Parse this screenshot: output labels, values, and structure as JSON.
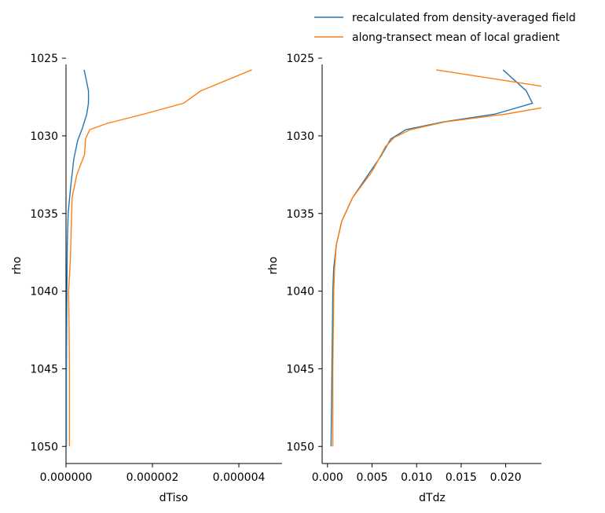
{
  "legend": {
    "entries": [
      {
        "label": "recalculated from density-averaged field",
        "color": "#1f77b4"
      },
      {
        "label": "along-transect mean of local gradient",
        "color": "#ff7f0e"
      }
    ]
  },
  "chart_data": [
    {
      "type": "line",
      "xlabel": "dTiso",
      "ylabel": "rho",
      "xlim": [
        0,
        5e-06
      ],
      "ylim": [
        1025.4,
        1051.1
      ],
      "y_inverted": true,
      "xticks": [
        0,
        2e-06,
        4e-06
      ],
      "xtick_labels": [
        "0.000000",
        "0.000002",
        "0.000004"
      ],
      "yticks": [
        1025,
        1030,
        1035,
        1040,
        1045,
        1050
      ],
      "ytick_labels": [
        "1025",
        "1030",
        "1035",
        "1040",
        "1045",
        "1050"
      ],
      "series": [
        {
          "name": "recalculated from density-averaged field",
          "color": "#1f77b4",
          "points": [
            [
              4.2e-07,
              1025.75
            ],
            [
              5.2e-07,
              1027.1
            ],
            [
              5.2e-07,
              1027.9
            ],
            [
              4.8e-07,
              1028.6
            ],
            [
              3.8e-07,
              1029.5
            ],
            [
              2.7e-07,
              1030.3
            ],
            [
              1.8e-07,
              1031.5
            ],
            [
              1e-07,
              1033.5
            ],
            [
              5e-08,
              1035.0
            ],
            [
              3e-08,
              1037.0
            ],
            [
              2e-08,
              1040.0
            ],
            [
              1e-08,
              1045.0
            ],
            [
              1e-08,
              1050.0
            ]
          ]
        },
        {
          "name": "along-transect mean of local gradient",
          "color": "#ff7f0e",
          "points": [
            [
              4.3e-06,
              1025.75
            ],
            [
              3.12e-06,
              1027.1
            ],
            [
              2.72e-06,
              1027.9
            ],
            [
              1.8e-06,
              1028.6
            ],
            [
              9.5e-07,
              1029.2
            ],
            [
              5.5e-07,
              1029.6
            ],
            [
              4.5e-07,
              1030.2
            ],
            [
              4.3e-07,
              1031.2
            ],
            [
              2.5e-07,
              1032.5
            ],
            [
              1.4e-07,
              1034.0
            ],
            [
              1.2e-07,
              1036.0
            ],
            [
              1e-07,
              1038.0
            ],
            [
              6e-08,
              1040.0
            ],
            [
              7e-08,
              1042.0
            ],
            [
              8e-08,
              1045.0
            ],
            [
              8e-08,
              1050.0
            ]
          ]
        }
      ]
    },
    {
      "type": "line",
      "xlabel": "dTdz",
      "ylabel": "rho",
      "xlim": [
        -0.0006,
        0.024
      ],
      "ylim": [
        1025.4,
        1051.1
      ],
      "y_inverted": true,
      "xticks": [
        0,
        0.005,
        0.01,
        0.015,
        0.02
      ],
      "xtick_labels": [
        "0.000",
        "0.005",
        "0.010",
        "0.015",
        "0.020"
      ],
      "yticks": [
        1025,
        1030,
        1035,
        1040,
        1045,
        1050
      ],
      "ytick_labels": [
        "1025",
        "1030",
        "1035",
        "1040",
        "1045",
        "1050"
      ],
      "series": [
        {
          "name": "recalculated from density-averaged field",
          "color": "#1f77b4",
          "points": [
            [
              0.0197,
              1025.75
            ],
            [
              0.0223,
              1027.1
            ],
            [
              0.023,
              1027.9
            ],
            [
              0.0188,
              1028.6
            ],
            [
              0.013,
              1029.1
            ],
            [
              0.0088,
              1029.6
            ],
            [
              0.0071,
              1030.2
            ],
            [
              0.006,
              1031.3
            ],
            [
              0.0048,
              1032.3
            ],
            [
              0.0028,
              1034.0
            ],
            [
              0.0016,
              1035.5
            ],
            [
              0.001,
              1037.0
            ],
            [
              0.0007,
              1038.5
            ],
            [
              0.0006,
              1040.0
            ],
            [
              0.0005,
              1045.0
            ],
            [
              0.0004,
              1050.0
            ]
          ]
        },
        {
          "name": "along-transect mean of local gradient",
          "color": "#ff7f0e",
          "points": [
            [
              0.0122,
              1025.75
            ],
            [
              0.024,
              1026.8
            ]
          ],
          "points_b": [
            [
              0.024,
              1028.2
            ],
            [
              0.02,
              1028.6
            ],
            [
              0.0132,
              1029.1
            ],
            [
              0.0093,
              1029.6
            ],
            [
              0.0075,
              1030.1
            ],
            [
              0.0065,
              1030.7
            ],
            [
              0.005,
              1032.3
            ],
            [
              0.0028,
              1034.0
            ],
            [
              0.0016,
              1035.5
            ],
            [
              0.001,
              1037.0
            ],
            [
              0.0008,
              1038.5
            ],
            [
              0.0007,
              1040.0
            ],
            [
              0.0006,
              1045.0
            ],
            [
              0.0006,
              1050.0
            ]
          ]
        }
      ]
    }
  ]
}
